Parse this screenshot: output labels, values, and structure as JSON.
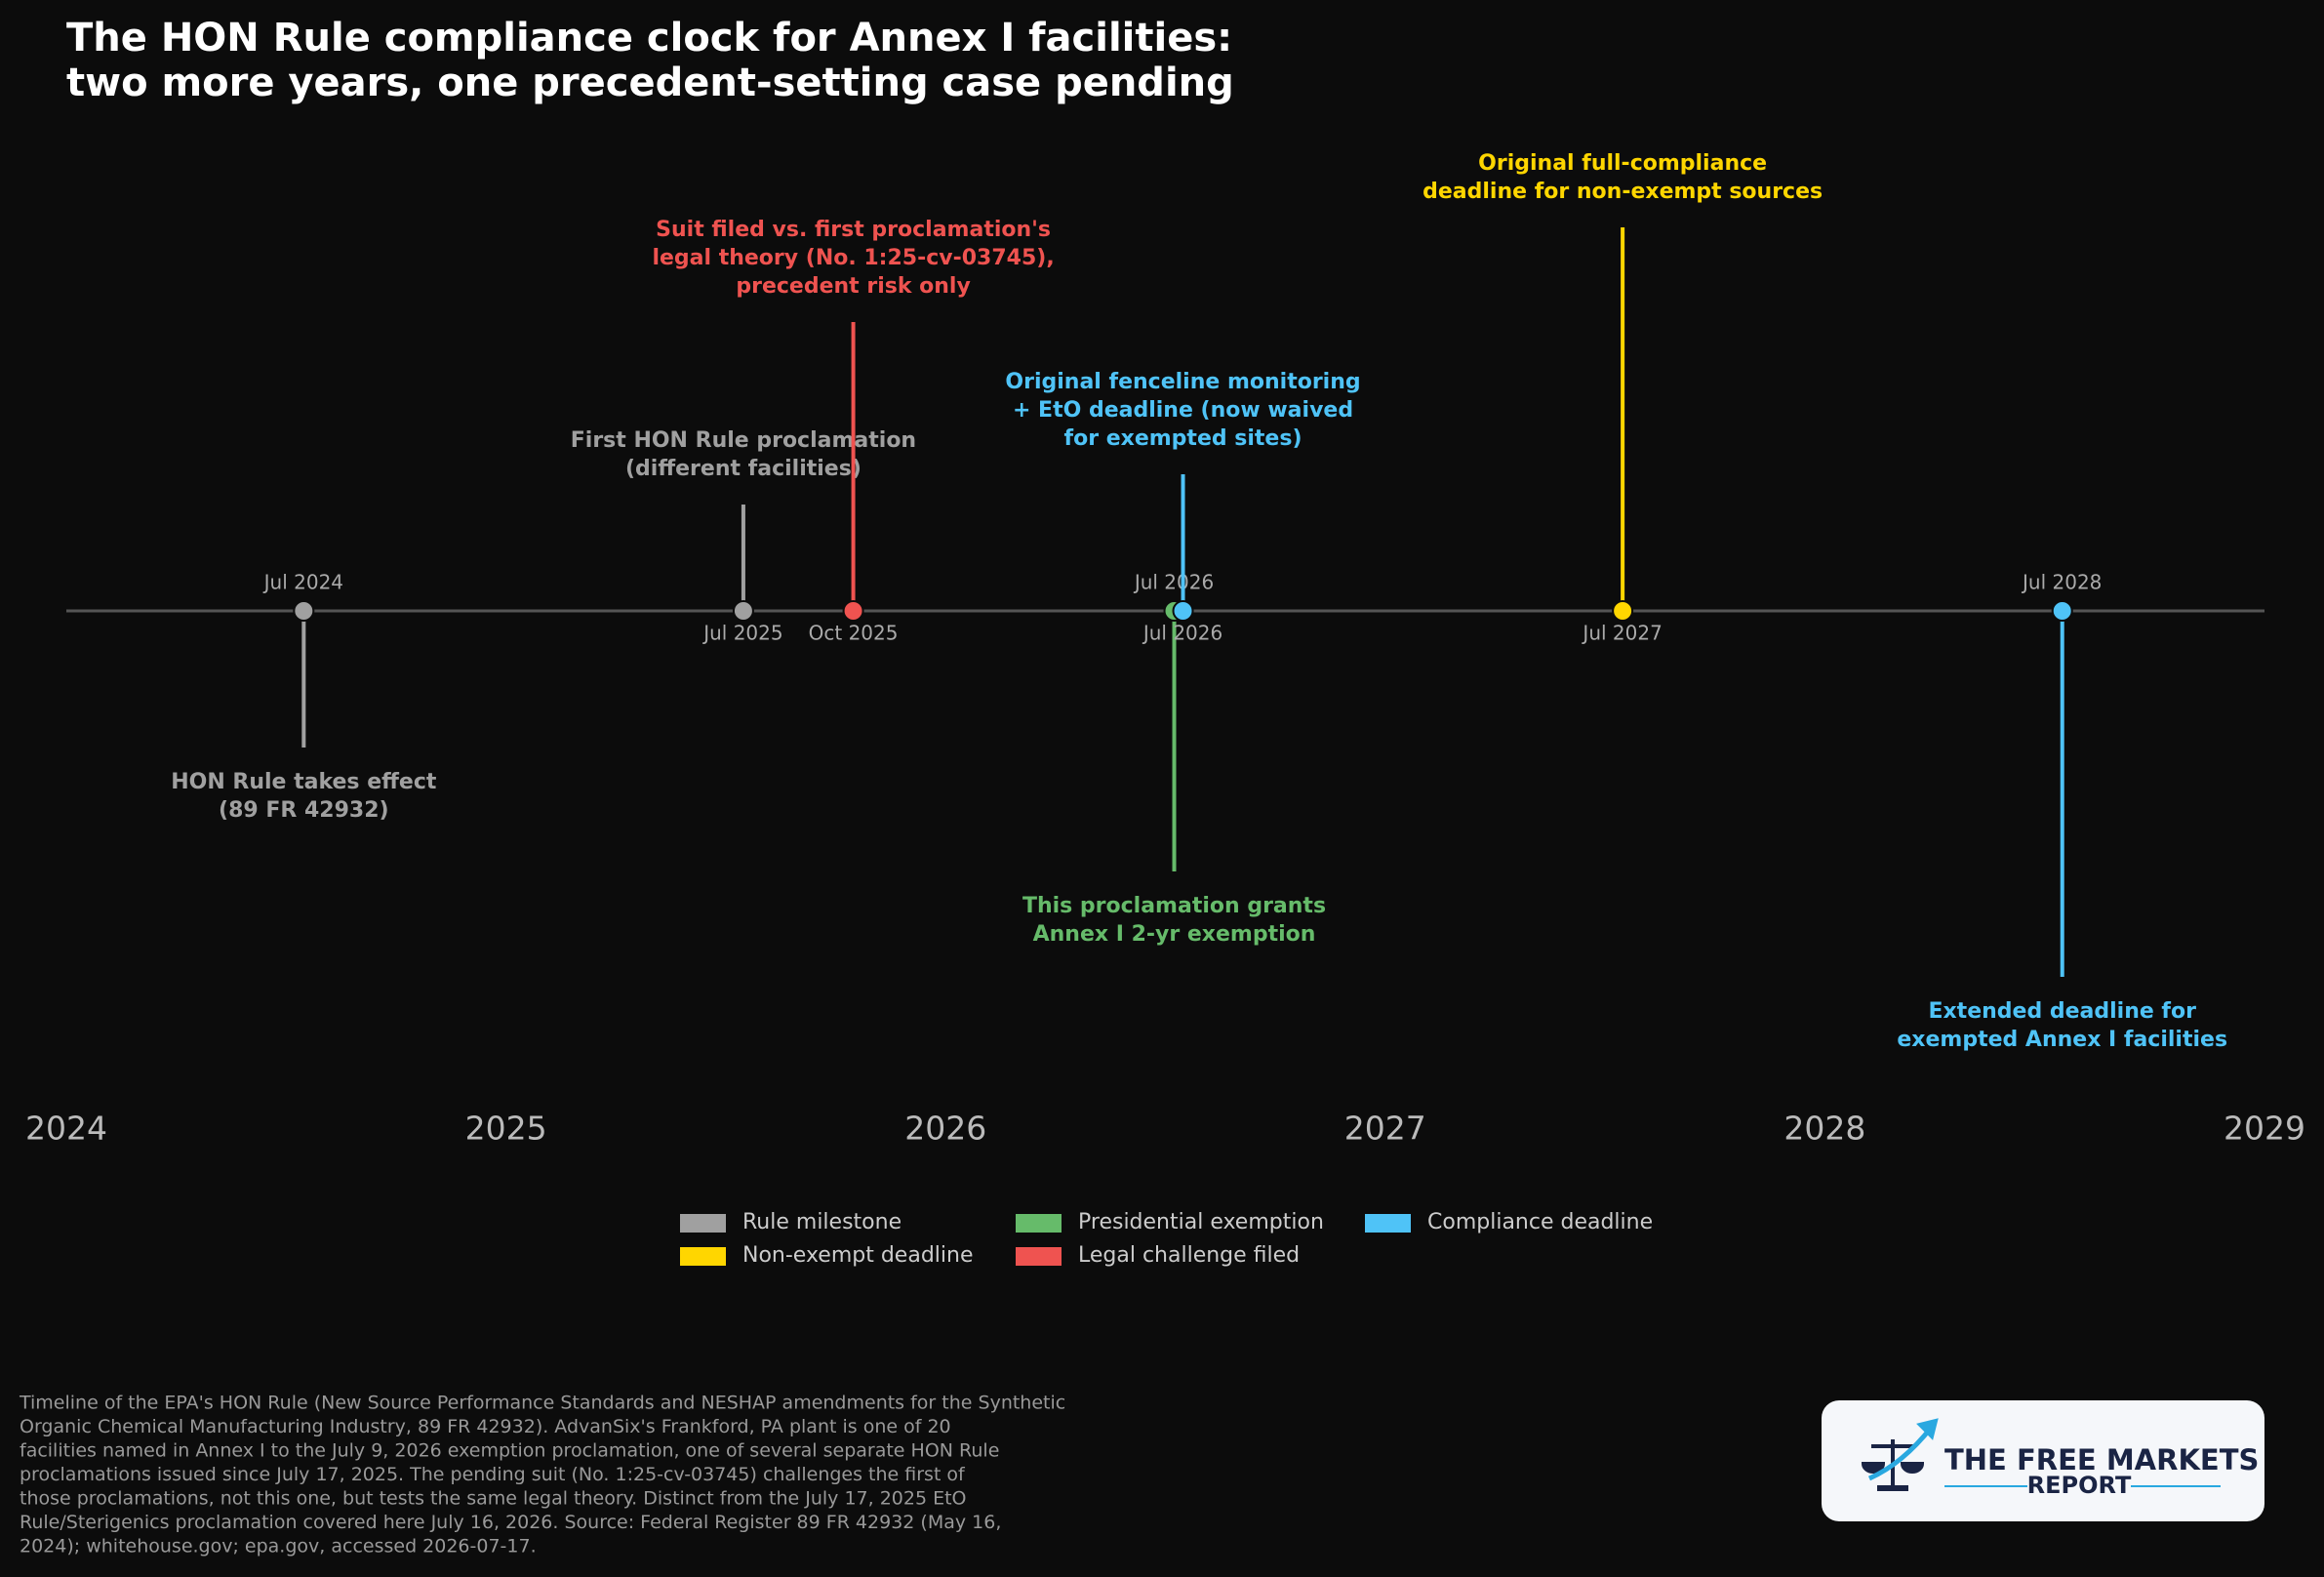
{
  "chart_data": {
    "type": "timeline",
    "title": [
      "The HON Rule compliance clock for Annex I facilities:",
      "two more years, one precedent-setting case pending"
    ],
    "xlim": [
      2024,
      2029
    ],
    "xticks": [
      2024,
      2025,
      2026,
      2027,
      2028,
      2029
    ],
    "events": [
      {
        "date": {
          "value": 2024.54,
          "label": "Jul 2024"
        },
        "label": [
          "HON Rule takes effect",
          "(89 FR 42932)"
        ],
        "color": "#a0a0a0"
      },
      {
        "date": {
          "value": 2025.54,
          "label": "Jul 2025"
        },
        "label": [
          "First HON Rule proclamation",
          "(different facilities)"
        ],
        "color": "#a0a0a0"
      },
      {
        "date": {
          "value": 2025.79,
          "label": "Oct 2025"
        },
        "label": [
          "Suit filed vs. first proclamation's",
          "legal theory (No. 1:25-cv-03745),",
          "precedent risk only"
        ],
        "color": "#ef5350"
      },
      {
        "date": {
          "value": 2026.52,
          "label": "Jul 2026"
        },
        "label": [
          "This proclamation grants",
          "Annex I 2-yr exemption"
        ],
        "color": "#66bb6a"
      },
      {
        "date": {
          "value": 2026.54,
          "label": "Jul 2026"
        },
        "label": [
          "Original fenceline monitoring",
          "+ EtO deadline (now waived",
          "for exempted sites)"
        ],
        "color": "#4fc3f7"
      },
      {
        "date": {
          "value": 2027.54,
          "label": "Jul 2027"
        },
        "label": [
          "Original full-compliance",
          "deadline for non-exempt sources"
        ],
        "color": "#ffd600"
      },
      {
        "date": {
          "value": 2028.54,
          "label": "Jul 2028"
        },
        "label": [
          "Extended deadline for",
          "exempted Annex I facilities"
        ],
        "color": "#4fc3f7"
      }
    ],
    "legend": [
      {
        "name": "Rule milestone",
        "color": "#a0a0a0"
      },
      {
        "name": "Presidential exemption",
        "color": "#66bb6a"
      },
      {
        "name": "Compliance deadline",
        "color": "#4fc3f7"
      },
      {
        "name": "Non-exempt deadline",
        "color": "#ffd600"
      },
      {
        "name": "Legal challenge filed",
        "color": "#ef5350"
      }
    ]
  },
  "footnote": [
    "Timeline of the EPA's HON Rule (New Source Performance Standards and NESHAP amendments for the Synthetic",
    "Organic Chemical Manufacturing Industry, 89 FR 42932). AdvanSix's Frankford, PA plant is one of 20",
    "facilities named in Annex I to the July 9, 2026 exemption proclamation, one of several separate HON Rule",
    "proclamations issued since July 17, 2025. The pending suit (No. 1:25-cv-03745) challenges the first of",
    "those proclamations, not this one, but tests the same legal theory. Distinct from the July 17, 2025 EtO",
    "Rule/Sterigenics proclamation covered here July 16, 2026. Source: Federal Register 89 FR 42932 (May 16,",
    "2024); whitehouse.gov; epa.gov, accessed 2026-07-17."
  ],
  "logo": {
    "line1": "THE FREE MARKETS",
    "line2": "REPORT"
  }
}
